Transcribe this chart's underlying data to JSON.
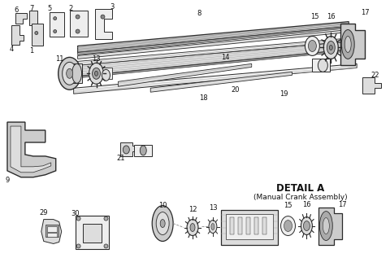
{
  "background_color": "#ffffff",
  "fig_width": 4.8,
  "fig_height": 3.33,
  "dpi": 100,
  "line_color": "#2a2a2a",
  "text_color": "#111111",
  "label_fontsize": 6.0,
  "detail_title_fontsize": 8.5,
  "detail_sub_fontsize": 6.5,
  "detail_title": "DETAIL A",
  "detail_sub": "(Manual Crank Assembly)",
  "gray_dark": "#888888",
  "gray_mid": "#aaaaaa",
  "gray_light": "#cccccc",
  "gray_lighter": "#dddddd",
  "gray_lightest": "#eeeeee",
  "white": "#f8f8f8"
}
